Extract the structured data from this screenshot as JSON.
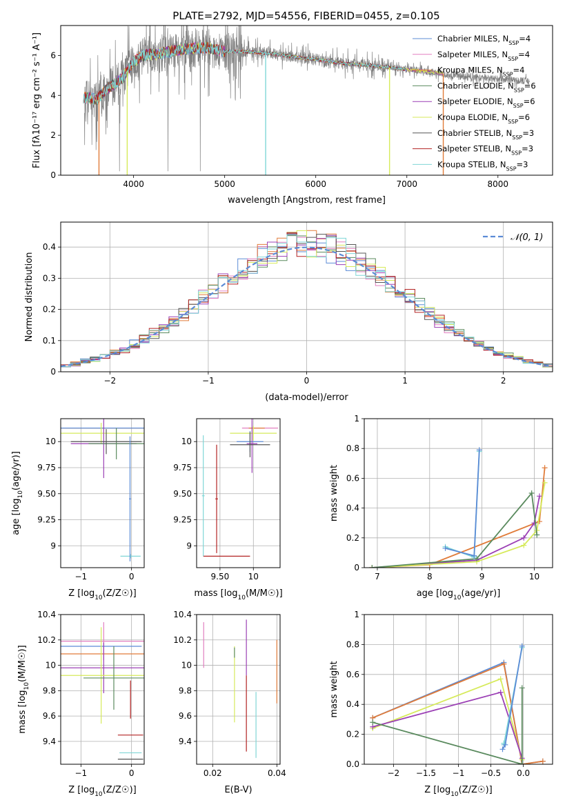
{
  "figure_title": "PLATE=2792, MJD=54556, FIBERID=0455, z=0.105",
  "colors": {
    "chabrier_miles": "#5b8bd6",
    "salpeter_miles": "#e27fc0",
    "kroupa_miles": "#e07b39",
    "chabrier_elodie": "#5a8a5e",
    "salpeter_elodie": "#9b3fb5",
    "kroupa_elodie": "#d6ea5a",
    "chabrier_stelib": "#555555",
    "salpeter_stelib": "#b22222",
    "kroupa_stelib": "#7fd6d6",
    "data": "#808080",
    "normal": "#5b8bd6"
  },
  "chart_data": [
    {
      "id": "spectrum",
      "type": "line",
      "xlabel": "wavelength [Angstrom, rest frame]",
      "ylabel": "Flux [fλ10⁻¹⁷ erg cm⁻² s⁻¹ A⁻¹]",
      "xlim": [
        3200,
        8600
      ],
      "ylim": [
        0,
        7.5
      ],
      "xticks": [
        4000,
        5000,
        6000,
        7000,
        8000
      ],
      "yticks": [
        0,
        2,
        4,
        6
      ],
      "legend_position": "top-right",
      "legend": [
        {
          "label": "Chabrier MILES, N_SSP=4",
          "text": "Chabrier MILES, N",
          "sub": "SSP",
          "tail": "=4",
          "color_key": "chabrier_miles"
        },
        {
          "label": "Salpeter MILES, N_SSP=4",
          "text": "Salpeter MILES, N",
          "sub": "SSP",
          "tail": "=4",
          "color_key": "salpeter_miles"
        },
        {
          "label": "Kroupa MILES, N_SSP=4",
          "text": "Kroupa MILES, N",
          "sub": "SSP",
          "tail": "=4",
          "color_key": "kroupa_miles"
        },
        {
          "label": "Chabrier ELODIE, N_SSP=6",
          "text": "Chabrier ELODIE, N",
          "sub": "SSP",
          "tail": "=6",
          "color_key": "chabrier_elodie"
        },
        {
          "label": "Salpeter ELODIE, N_SSP=6",
          "text": "Salpeter ELODIE, N",
          "sub": "SSP",
          "tail": "=6",
          "color_key": "salpeter_elodie"
        },
        {
          "label": "Kroupa ELODIE, N_SSP=6",
          "text": "Kroupa ELODIE, N",
          "sub": "SSP",
          "tail": "=6",
          "color_key": "kroupa_elodie"
        },
        {
          "label": "Chabrier STELIB, N_SSP=3",
          "text": "Chabrier STELIB, N",
          "sub": "SSP",
          "tail": "=3",
          "color_key": "chabrier_stelib"
        },
        {
          "label": "Salpeter STELIB, N_SSP=3",
          "text": "Salpeter STELIB, N",
          "sub": "SSP",
          "tail": "=3",
          "color_key": "salpeter_stelib"
        },
        {
          "label": "Kroupa STELIB, N_SSP=3",
          "text": "Kroupa STELIB, N",
          "sub": "SSP",
          "tail": "=3",
          "color_key": "kroupa_stelib"
        }
      ],
      "continuum": {
        "x": [
          3450,
          3600,
          3700,
          3800,
          3900,
          4000,
          4100,
          4300,
          4500,
          4800,
          5000,
          5200,
          5500,
          5800,
          6000,
          6300,
          6600,
          6800,
          7000,
          7200,
          7400
        ],
        "y": [
          3.9,
          3.8,
          4.3,
          4.6,
          5.0,
          5.7,
          6.0,
          6.1,
          6.3,
          6.4,
          6.2,
          6.2,
          6.1,
          5.9,
          5.8,
          5.6,
          5.5,
          5.4,
          5.3,
          5.2,
          5.1
        ]
      },
      "observed_range": [
        3460,
        8350
      ],
      "model_dropouts": [
        {
          "x": 3620,
          "color_key": "kroupa_miles"
        },
        {
          "x": 3930,
          "color_key": "kroupa_elodie"
        },
        {
          "x": 5450,
          "color_key": "kroupa_stelib"
        },
        {
          "x": 6810,
          "color_key": "kroupa_elodie"
        },
        {
          "x": 7400,
          "color_key": "kroupa_miles"
        }
      ]
    },
    {
      "id": "residuals",
      "type": "step-histogram",
      "xlabel": "(data-model)/error",
      "ylabel": "Normed distribution",
      "xlim": [
        -2.5,
        2.5
      ],
      "ylim": [
        0,
        0.48
      ],
      "xticks": [
        -2,
        -1,
        0,
        1,
        2
      ],
      "yticks": [
        0.0,
        0.1,
        0.2,
        0.3,
        0.4
      ],
      "bin_width": 0.1,
      "legend_position": "top-right",
      "normal_label": "𝒩(0, 1)",
      "normal": {
        "mean": 0,
        "sigma": 1
      },
      "series_color_keys": [
        "chabrier_miles",
        "salpeter_miles",
        "kroupa_miles",
        "chabrier_elodie",
        "salpeter_elodie",
        "kroupa_elodie",
        "chabrier_stelib",
        "salpeter_stelib",
        "kroupa_stelib"
      ]
    },
    {
      "id": "age_vs_Z",
      "type": "errorbar",
      "xlabel_text": "Z [log",
      "xlabel_sub": "10",
      "xlabel_tail": "(Z/Z☉)]",
      "ylabel_text": "age  [log",
      "ylabel_sub": "10",
      "ylabel_tail": "(age/yr)]",
      "xlim": [
        -1.4,
        0.25
      ],
      "ylim": [
        8.79,
        10.22
      ],
      "xticks": [
        -1,
        0
      ],
      "yticks": [
        9.0,
        9.25,
        9.5,
        9.75,
        10.0
      ],
      "points": [
        {
          "x": -0.45,
          "y": 10.13,
          "xerr": 1.55,
          "yerr": 0.0,
          "color_key": "kroupa_miles"
        },
        {
          "x": -0.55,
          "y": 10.13,
          "xerr": 1.45,
          "yerr": 0.0,
          "color_key": "chabrier_miles"
        },
        {
          "x": -0.6,
          "y": 10.08,
          "xerr": 0.9,
          "yerr": 0.1,
          "color_key": "kroupa_elodie"
        },
        {
          "x": -0.55,
          "y": 9.98,
          "xerr": 0.65,
          "yerr": 0.33,
          "color_key": "salpeter_elodie"
        },
        {
          "x": -0.3,
          "y": 9.98,
          "xerr": 0.55,
          "yerr": 0.15,
          "color_key": "chabrier_elodie"
        },
        {
          "x": -0.5,
          "y": 10.0,
          "xerr": 0.7,
          "yerr": 0.12,
          "color_key": "chabrier_stelib"
        },
        {
          "x": -0.02,
          "y": 8.9,
          "xerr": 0.2,
          "yerr": 0.02,
          "color_key": "kroupa_stelib"
        },
        {
          "x": -0.03,
          "y": 9.45,
          "xerr": 0.02,
          "yerr": 0.6,
          "color_key": "chabrier_miles"
        }
      ]
    },
    {
      "id": "age_vs_mass",
      "type": "errorbar",
      "xlabel_text": "mass [log",
      "xlabel_sub": "10",
      "xlabel_tail": "(M/M☉)]",
      "ylabel_text": "",
      "ylabel_sub": "",
      "ylabel_tail": "",
      "xlim": [
        9.15,
        10.4
      ],
      "ylim": [
        8.79,
        10.22
      ],
      "xticks": [
        9.5,
        10.0
      ],
      "yticks": [
        9.0,
        9.25,
        9.5,
        9.75,
        10.0
      ],
      "points": [
        {
          "x": 10.1,
          "y": 10.13,
          "xerr": 0.27,
          "yerr": 0.0,
          "color_key": "salpeter_miles"
        },
        {
          "x": 10.05,
          "y": 10.13,
          "xerr": 0.12,
          "yerr": 0.0,
          "color_key": "kroupa_miles"
        },
        {
          "x": 10.0,
          "y": 10.08,
          "xerr": 0.35,
          "yerr": 0.07,
          "color_key": "kroupa_elodie"
        },
        {
          "x": 9.95,
          "y": 10.0,
          "xerr": 0.2,
          "yerr": 0.1,
          "color_key": "chabrier_miles"
        },
        {
          "x": 9.98,
          "y": 9.98,
          "xerr": 0.08,
          "yerr": 0.28,
          "color_key": "salpeter_elodie"
        },
        {
          "x": 9.95,
          "y": 9.97,
          "xerr": 0.3,
          "yerr": 0.12,
          "color_key": "chabrier_stelib"
        },
        {
          "x": 9.6,
          "y": 8.9,
          "xerr": 0.35,
          "yerr": 0.0,
          "color_key": "salpeter_stelib"
        },
        {
          "x": 9.45,
          "y": 9.45,
          "xerr": 0.02,
          "yerr": 0.52,
          "color_key": "salpeter_stelib"
        },
        {
          "x": 9.25,
          "y": 9.48,
          "xerr": 0.02,
          "yerr": 0.58,
          "color_key": "kroupa_stelib"
        }
      ]
    },
    {
      "id": "massweight_vs_age",
      "type": "line",
      "xlabel_text": "age  [log",
      "xlabel_sub": "10",
      "xlabel_tail": "(age/yr)]",
      "ylabel_text": "mass weight",
      "ylabel_sub": "",
      "ylabel_tail": "",
      "xlim": [
        6.75,
        10.35
      ],
      "ylim": [
        0,
        1.0
      ],
      "xticks": [
        7,
        8,
        9,
        10
      ],
      "yticks": [
        0.0,
        0.2,
        0.4,
        0.6,
        0.8,
        1.0
      ],
      "series": [
        {
          "color_key": "kroupa_miles",
          "x": [
            6.9,
            8.0,
            10.1,
            10.2
          ],
          "y": [
            0.0,
            0.02,
            0.31,
            0.67
          ]
        },
        {
          "color_key": "salpeter_elodie",
          "x": [
            6.9,
            8.9,
            9.8,
            10.0,
            10.1
          ],
          "y": [
            0.0,
            0.05,
            0.2,
            0.3,
            0.48
          ]
        },
        {
          "color_key": "kroupa_elodie",
          "x": [
            6.9,
            8.9,
            9.8,
            10.05,
            10.2
          ],
          "y": [
            0.0,
            0.04,
            0.15,
            0.25,
            0.57
          ]
        },
        {
          "color_key": "chabrier_elodie",
          "x": [
            6.9,
            8.9,
            9.95,
            10.05
          ],
          "y": [
            0.0,
            0.06,
            0.5,
            0.22
          ]
        },
        {
          "color_key": "kroupa_stelib",
          "x": [
            8.3,
            8.85,
            8.95
          ],
          "y": [
            0.14,
            0.07,
            0.78
          ]
        },
        {
          "color_key": "chabrier_miles",
          "x": [
            8.3,
            8.85,
            8.95
          ],
          "y": [
            0.13,
            0.08,
            0.79
          ]
        }
      ]
    },
    {
      "id": "mass_vs_Z",
      "type": "errorbar",
      "xlabel_text": "Z [log",
      "xlabel_sub": "10",
      "xlabel_tail": "(Z/Z☉)]",
      "ylabel_text": "mass [log",
      "ylabel_sub": "10",
      "ylabel_tail": "(M/M☉)]",
      "xlim": [
        -1.4,
        0.25
      ],
      "ylim": [
        9.22,
        10.4
      ],
      "xticks": [
        -1,
        0
      ],
      "yticks": [
        9.4,
        9.6,
        9.8,
        10.0,
        10.2,
        10.4
      ],
      "points": [
        {
          "x": -0.55,
          "y": 10.19,
          "xerr": 0.95,
          "yerr": 0.15,
          "color_key": "salpeter_miles"
        },
        {
          "x": -0.6,
          "y": 10.15,
          "xerr": 0.8,
          "yerr": 0.0,
          "color_key": "chabrier_miles"
        },
        {
          "x": -0.55,
          "y": 10.09,
          "xerr": 1.05,
          "yerr": 0.0,
          "color_key": "kroupa_miles"
        },
        {
          "x": -0.55,
          "y": 9.98,
          "xerr": 0.95,
          "yerr": 0.2,
          "color_key": "salpeter_elodie"
        },
        {
          "x": -0.6,
          "y": 9.92,
          "xerr": 0.9,
          "yerr": 0.38,
          "color_key": "kroupa_elodie"
        },
        {
          "x": -0.35,
          "y": 9.9,
          "xerr": 0.6,
          "yerr": 0.25,
          "color_key": "chabrier_elodie"
        },
        {
          "x": -0.02,
          "y": 9.45,
          "xerr": 0.25,
          "yerr": 0.0,
          "color_key": "salpeter_stelib"
        },
        {
          "x": -0.02,
          "y": 9.31,
          "xerr": 0.22,
          "yerr": 0.0,
          "color_key": "kroupa_stelib"
        },
        {
          "x": -0.02,
          "y": 9.26,
          "xerr": 0.25,
          "yerr": 0.0,
          "color_key": "chabrier_stelib"
        },
        {
          "x": -0.02,
          "y": 9.73,
          "xerr": 0.0,
          "yerr": 0.15,
          "color_key": "salpeter_stelib"
        }
      ]
    },
    {
      "id": "mass_vs_ebv",
      "type": "errorbar",
      "xlabel_text": "E(B-V)",
      "xlabel_sub": "",
      "xlabel_tail": "",
      "ylabel_text": "",
      "ylabel_sub": "",
      "ylabel_tail": "",
      "xlim": [
        0.015,
        0.041
      ],
      "ylim": [
        9.22,
        10.4
      ],
      "xticks": [
        0.02,
        0.04
      ],
      "yticks": [
        9.4,
        9.6,
        9.8,
        10.0,
        10.2,
        10.4
      ],
      "points": [
        {
          "x": 0.0172,
          "y": 10.16,
          "xerr": 0.0,
          "yerr": 0.18,
          "color_key": "salpeter_miles"
        },
        {
          "x": 0.0268,
          "y": 9.85,
          "xerr": 0.0,
          "yerr": 0.3,
          "color_key": "kroupa_elodie"
        },
        {
          "x": 0.0268,
          "y": 10.1,
          "xerr": 0.0,
          "yerr": 0.04,
          "color_key": "chabrier_elodie"
        },
        {
          "x": 0.0305,
          "y": 10.14,
          "xerr": 0.0,
          "yerr": 0.22,
          "color_key": "salpeter_elodie"
        },
        {
          "x": 0.0305,
          "y": 9.62,
          "xerr": 0.0,
          "yerr": 0.3,
          "color_key": "salpeter_stelib"
        },
        {
          "x": 0.0335,
          "y": 9.53,
          "xerr": 0.0,
          "yerr": 0.26,
          "color_key": "kroupa_stelib"
        },
        {
          "x": 0.04,
          "y": 9.95,
          "xerr": 0.0,
          "yerr": 0.25,
          "color_key": "kroupa_miles"
        }
      ]
    },
    {
      "id": "massweight_vs_Z",
      "type": "line",
      "xlabel_text": "Z [log",
      "xlabel_sub": "10",
      "xlabel_tail": "(Z/Z☉)]",
      "ylabel_text": "mass weight",
      "ylabel_sub": "",
      "ylabel_tail": "",
      "xlim": [
        -2.45,
        0.45
      ],
      "ylim": [
        0,
        1.0
      ],
      "xticks": [
        -2.0,
        -1.5,
        -1.0,
        -0.5,
        0.0
      ],
      "yticks": [
        0.0,
        0.2,
        0.4,
        0.6,
        0.8,
        1.0
      ],
      "series": [
        {
          "color_key": "chabrier_miles",
          "x": [
            -2.32,
            -0.3,
            -0.02,
            0.3
          ],
          "y": [
            0.31,
            0.68,
            0.0,
            0.02
          ]
        },
        {
          "color_key": "kroupa_miles",
          "x": [
            -2.32,
            -0.3,
            -0.02,
            0.3
          ],
          "y": [
            0.31,
            0.67,
            0.0,
            0.02
          ]
        },
        {
          "color_key": "kroupa_elodie",
          "x": [
            -2.32,
            -0.35,
            -0.02
          ],
          "y": [
            0.24,
            0.57,
            0.03
          ]
        },
        {
          "color_key": "salpeter_elodie",
          "x": [
            -2.32,
            -0.35,
            -0.02
          ],
          "y": [
            0.25,
            0.48,
            0.04
          ]
        },
        {
          "color_key": "chabrier_elodie",
          "x": [
            -2.32,
            -0.02,
            -0.02
          ],
          "y": [
            0.28,
            0.0,
            0.51
          ]
        },
        {
          "color_key": "kroupa_stelib",
          "x": [
            -0.3,
            -0.3,
            -0.02
          ],
          "y": [
            0.14,
            0.13,
            0.78
          ]
        },
        {
          "color_key": "chabrier_miles",
          "x": [
            -0.32,
            -0.28,
            -0.02
          ],
          "y": [
            0.1,
            0.13,
            0.79
          ]
        }
      ]
    }
  ]
}
